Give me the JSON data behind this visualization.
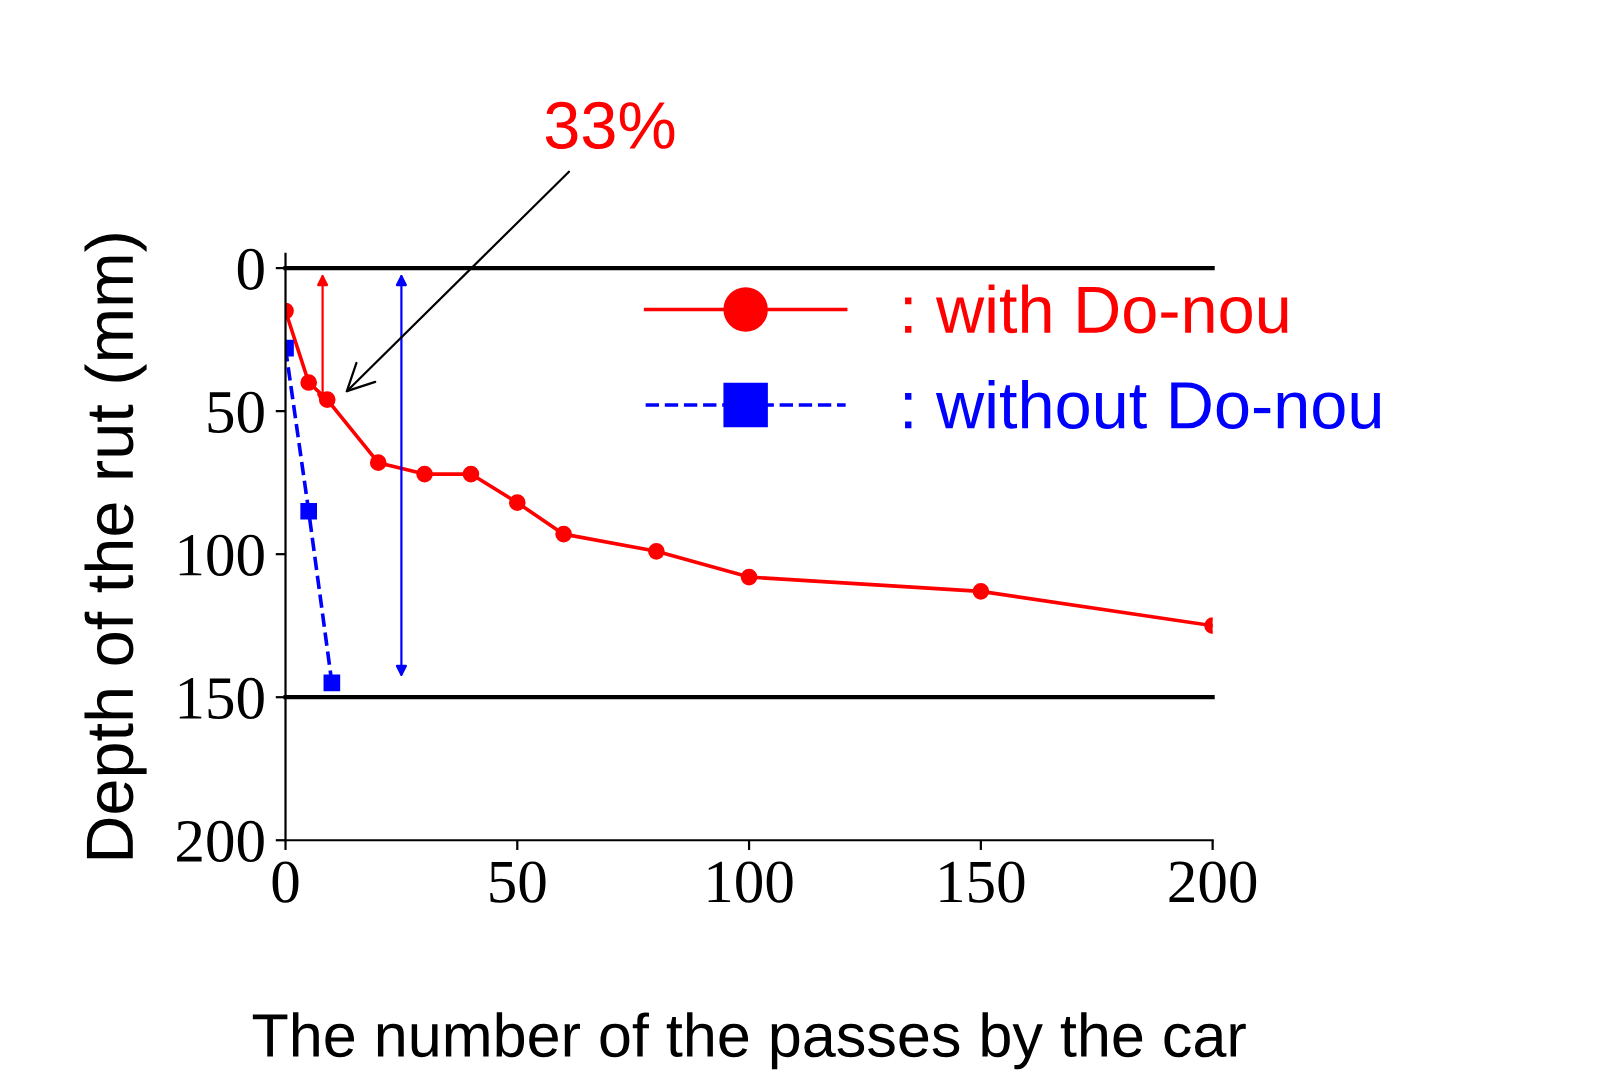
{
  "chart_data": {
    "type": "line",
    "xlabel": "The number of the passes by the car",
    "ylabel": "Depth of the rut (mm)",
    "xlim": [
      0,
      200
    ],
    "ylim": [
      200,
      -5
    ],
    "xticks": [
      0,
      50,
      100,
      150,
      200
    ],
    "yticks": [
      0,
      50,
      100,
      150,
      200
    ],
    "grid": false,
    "legend": "top right",
    "series": [
      {
        "name": ": with Do-nou",
        "color": "#ff0000",
        "marker": "circle",
        "line_style": "solid",
        "x": [
          0,
          5,
          9,
          20,
          30,
          40,
          50,
          60,
          80,
          100,
          150,
          200
        ],
        "values": [
          15,
          40,
          46,
          68,
          72,
          72,
          82,
          93,
          99,
          108,
          113,
          125
        ]
      },
      {
        "name": ": without Do-nou",
        "color": "#0000ff",
        "marker": "square",
        "line_style": "dashed",
        "x": [
          0,
          5,
          10
        ],
        "values": [
          28,
          85,
          145
        ]
      }
    ],
    "ref_lines": [
      {
        "axis": "y",
        "value": 0,
        "label": null,
        "color": "#000000"
      },
      {
        "axis": "y",
        "value": 150,
        "label": null,
        "color": "#000000"
      }
    ],
    "annotations": [
      {
        "text": "33%",
        "x": 12,
        "y": 45
      }
    ]
  }
}
